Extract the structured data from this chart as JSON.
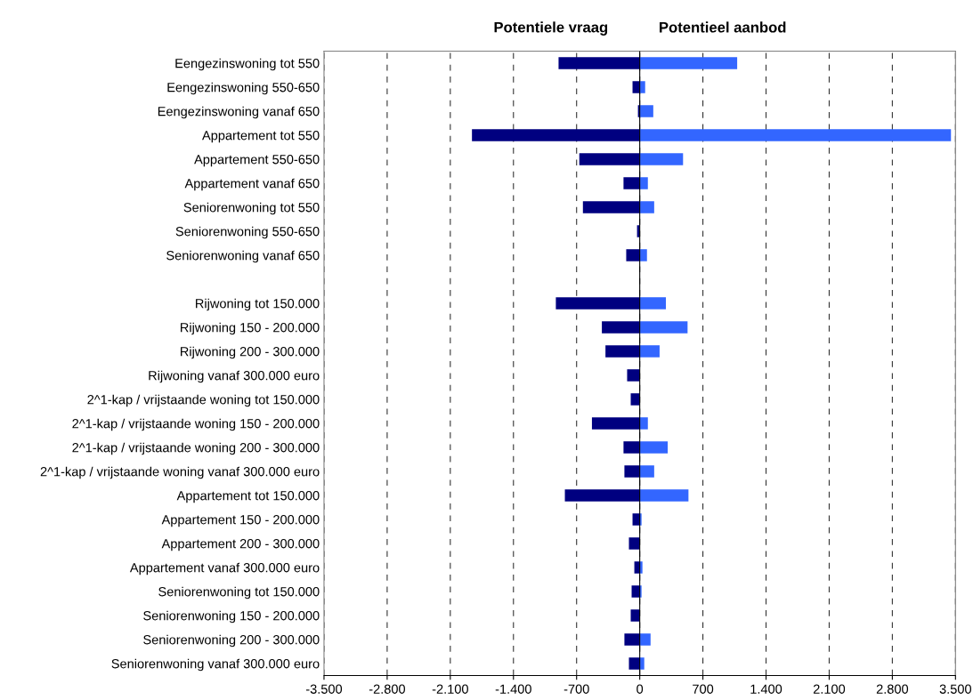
{
  "chart_data": {
    "type": "bar",
    "orientation": "horizontal",
    "stacked": true,
    "categories": [
      "Eengezinswoning tot 550",
      "Eengezinswoning 550-650",
      "Eengezinswoning vanaf 650",
      "Appartement tot 550",
      "Appartement 550-650",
      "Appartement vanaf 650",
      "Seniorenwoning tot 550",
      "Seniorenwoning 550-650",
      "Seniorenwoning vanaf 650",
      null,
      "Rijwoning tot 150.000",
      "Rijwoning 150 - 200.000",
      "Rijwoning 200 - 300.000",
      "Rijwoning vanaf 300.000 euro",
      "2^1-kap / vrijstaande woning tot 150.000",
      "2^1-kap / vrijstaande woning 150 - 200.000",
      "2^1-kap / vrijstaande woning 200 - 300.000",
      "2^1-kap / vrijstaande woning vanaf 300.000 euro",
      "Appartement tot 150.000",
      "Appartement 150 - 200.000",
      "Appartement 200 - 300.000",
      "Appartement vanaf 300.000 euro",
      "Seniorenwoning tot 150.000",
      "Seniorenwoning 150 - 200.000",
      "Seniorenwoning 200 - 300.000",
      "Seniorenwoning vanaf 300.000 euro"
    ],
    "series": [
      {
        "name": "Potentiele vraag",
        "color": "#000080",
        "values": [
          -900,
          -80,
          -20,
          -1860,
          -670,
          -180,
          -630,
          -30,
          -150,
          null,
          -930,
          -420,
          -380,
          -140,
          -100,
          -530,
          -180,
          -170,
          -830,
          -80,
          -120,
          -60,
          -90,
          -100,
          -170,
          -120
        ]
      },
      {
        "name": "Potentieel aanbod",
        "color": "#3366ff",
        "values": [
          1080,
          60,
          150,
          3450,
          480,
          90,
          160,
          0,
          80,
          null,
          290,
          530,
          220,
          0,
          0,
          90,
          310,
          160,
          540,
          20,
          0,
          30,
          20,
          0,
          120,
          50
        ]
      }
    ],
    "xlim": [
      -3500,
      3500
    ],
    "xticks": [
      {
        "value": -3500,
        "label": "-3.500"
      },
      {
        "value": -2800,
        "label": "-2.800"
      },
      {
        "value": -2100,
        "label": "-2.100"
      },
      {
        "value": -1400,
        "label": "-1.400"
      },
      {
        "value": -700,
        "label": "-700"
      },
      0,
      {
        "value": 700,
        "label": "700"
      },
      {
        "value": 1400,
        "label": "1.400"
      },
      {
        "value": 2100,
        "label": "2.100"
      },
      {
        "value": 2800,
        "label": "2.800"
      },
      {
        "value": 3500,
        "label": "3.500"
      }
    ],
    "grid": "x",
    "legend": "top"
  }
}
